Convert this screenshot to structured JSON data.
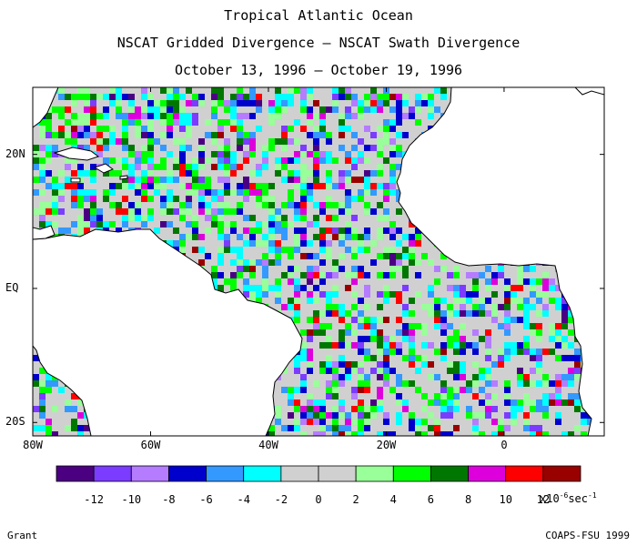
{
  "title": {
    "line1": "Tropical Atlantic Ocean",
    "line2": "NSCAT Gridded Divergence – NSCAT Swath Divergence",
    "line3": "October 13, 1996 – October 19, 1996"
  },
  "map": {
    "lat_labels": [
      {
        "text": "20N",
        "lat": 20
      },
      {
        "text": "EQ",
        "lat": 0
      },
      {
        "text": "20S",
        "lat": -20
      }
    ],
    "lon_labels": [
      {
        "text": "80W",
        "lon": -80
      },
      {
        "text": "60W",
        "lon": -60
      },
      {
        "text": "40W",
        "lon": -40
      },
      {
        "text": "20W",
        "lon": -20
      },
      {
        "text": "0",
        "lon": 0
      }
    ],
    "extent": {
      "lon_min": -80,
      "lon_max": 17,
      "lat_min": -22,
      "lat_max": 30
    }
  },
  "colorbar": {
    "colors": [
      "#4b0082",
      "#7b3cff",
      "#b57cff",
      "#0000cd",
      "#3399ff",
      "#00ffff",
      "#d0d0d0",
      "#d0d0d0",
      "#99ff99",
      "#00ff00",
      "#007700",
      "#dd00dd",
      "#ff0000",
      "#990000"
    ],
    "labels": [
      "-12",
      "-10",
      "-8",
      "-6",
      "-4",
      "-2",
      "0",
      "2",
      "4",
      "6",
      "8",
      "10",
      "12"
    ],
    "units_prefix": "x10",
    "units_exp": "-6",
    "units_suffix": "sec",
    "units_suffix_exp": "-1"
  },
  "footer": {
    "left": "Grant",
    "right": "COAPS-FSU 1999"
  }
}
